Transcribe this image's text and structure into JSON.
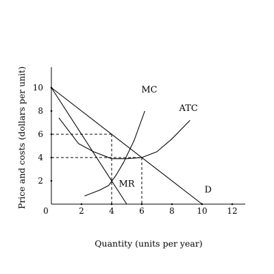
{
  "chart_data": {
    "type": "line",
    "xlabel": "Quantity (units per year)",
    "ylabel": "Price and costs (dollars per unit)",
    "xlim": [
      0,
      13
    ],
    "ylim": [
      0,
      11.5
    ],
    "x_ticks": [
      "0",
      "2",
      "4",
      "6",
      "8",
      "10",
      "12"
    ],
    "x_tick_values": [
      0,
      2,
      4,
      6,
      8,
      10,
      12
    ],
    "y_ticks": [
      "2",
      "4",
      "6",
      "8",
      "10"
    ],
    "y_tick_values": [
      2,
      4,
      6,
      8,
      10
    ],
    "grid": false,
    "series": [
      {
        "name": "D",
        "points": [
          [
            0,
            10
          ],
          [
            10,
            0
          ]
        ]
      },
      {
        "name": "MR",
        "points": [
          [
            0,
            10
          ],
          [
            5,
            0
          ]
        ]
      },
      {
        "name": "MC",
        "points": [
          [
            2.2,
            0.7
          ],
          [
            3.2,
            1.2
          ],
          [
            3.8,
            1.6
          ],
          [
            4.3,
            2.5
          ],
          [
            4.8,
            3.6
          ],
          [
            5.5,
            5.5
          ],
          [
            6.2,
            8.0
          ]
        ]
      },
      {
        "name": "ATC",
        "points": [
          [
            0.5,
            7.4
          ],
          [
            1.8,
            5.2
          ],
          [
            2.8,
            4.5
          ],
          [
            4.0,
            3.9
          ],
          [
            5.0,
            3.9
          ],
          [
            6.0,
            4.0
          ],
          [
            7.0,
            4.5
          ],
          [
            8.0,
            5.6
          ],
          [
            9.2,
            7.2
          ]
        ]
      }
    ],
    "curve_labels": [
      {
        "text": "MC",
        "x": 6.5,
        "y": 9.6
      },
      {
        "text": "ATC",
        "x": 9.1,
        "y": 8.0
      },
      {
        "text": "MR",
        "x": 5.0,
        "y": 1.5
      },
      {
        "text": "D",
        "x": 10.4,
        "y": 1.0
      }
    ],
    "reference_lines": [
      {
        "from": [
          0,
          6
        ],
        "to": [
          4,
          6
        ]
      },
      {
        "from": [
          4,
          6
        ],
        "to": [
          4,
          0
        ]
      },
      {
        "from": [
          0,
          4
        ],
        "to": [
          6,
          4
        ]
      },
      {
        "from": [
          6,
          4
        ],
        "to": [
          6,
          0
        ]
      }
    ]
  }
}
